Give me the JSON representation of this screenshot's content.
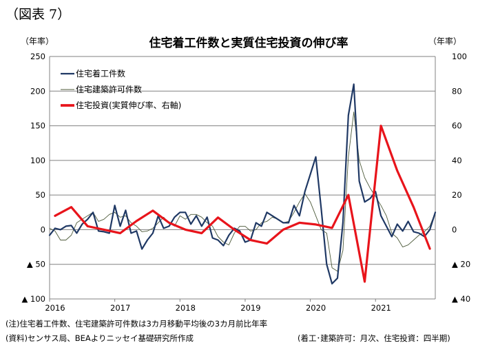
{
  "figure_label": "（図表 7）",
  "footer": {
    "note": "(注)住宅着工件数、住宅建築許可件数は3カ月移動平均後の3カ月前比年率",
    "source": "(資料)センサス局、BEAよりニッセイ基礎研究所作成",
    "frequency": "(着工･建築許可：月次、住宅投資：四半期)"
  },
  "colors": {
    "starts": "#1f3864",
    "permits": "#4d5a3a",
    "investment": "#e8141b",
    "grid": "#808080"
  },
  "chart_data": {
    "type": "line",
    "title": "住宅着工件数と実質住宅投資の伸び率",
    "y_left_unit": "（年率）",
    "y_right_unit": "（年率）",
    "y_left": {
      "min": -100,
      "max": 250,
      "ticks": [
        250,
        200,
        150,
        100,
        50,
        0,
        -50,
        -100
      ],
      "tick_labels": [
        "250",
        "200",
        "150",
        "100",
        "50",
        "0",
        "▲ 50",
        "▲ 100"
      ]
    },
    "y_right": {
      "min": -40,
      "max": 100,
      "ticks": [
        100,
        80,
        60,
        40,
        20,
        0,
        -20,
        -40
      ],
      "tick_labels": [
        "100",
        "80",
        "60",
        "40",
        "20",
        "0",
        "▲ 20",
        "▲ 40"
      ]
    },
    "x_labels": [
      "2016",
      "2017",
      "2018",
      "2019",
      "2020",
      "2021"
    ],
    "x_range_months": [
      0,
      71
    ],
    "grid": true,
    "legend_position": "top-left",
    "series": [
      {
        "name": "住宅着工件数",
        "axis": "left",
        "x_unit": "month_index",
        "values": [
          -8,
          2,
          0,
          5,
          6,
          -5,
          8,
          15,
          25,
          -2,
          -3,
          -5,
          35,
          5,
          28,
          -5,
          -2,
          -28,
          -15,
          -5,
          20,
          2,
          5,
          18,
          25,
          25,
          8,
          20,
          5,
          18,
          -12,
          -15,
          -23,
          -8,
          2,
          -2,
          -18,
          -15,
          10,
          5,
          25,
          20,
          15,
          10,
          10,
          35,
          20,
          55,
          80,
          105,
          30,
          -50,
          -78,
          -70,
          10,
          165,
          210,
          70,
          40,
          45,
          55,
          20,
          5,
          -10,
          8,
          -2,
          12,
          -3,
          -5,
          -10,
          0,
          25
        ]
      },
      {
        "name": "住宅建築許可件数",
        "axis": "left",
        "x_unit": "month_index",
        "values": [
          2,
          -2,
          -15,
          -15,
          -8,
          10,
          15,
          20,
          25,
          12,
          15,
          22,
          25,
          18,
          20,
          10,
          5,
          -3,
          -2,
          2,
          10,
          18,
          10,
          5,
          20,
          15,
          22,
          22,
          18,
          10,
          5,
          -10,
          -18,
          -22,
          -5,
          5,
          5,
          -2,
          0,
          10,
          12,
          18,
          15,
          10,
          12,
          25,
          40,
          52,
          40,
          20,
          0,
          -5,
          -55,
          -60,
          -30,
          105,
          170,
          100,
          75,
          60,
          48,
          35,
          20,
          -5,
          -12,
          -25,
          -22,
          -15,
          -8,
          -3,
          5,
          25
        ]
      },
      {
        "name": "住宅投資(実質伸び率、右軸)",
        "axis": "right",
        "x_unit": "quarter_mid_month_index",
        "x": [
          1,
          4,
          7,
          10,
          13,
          16,
          19,
          22,
          25,
          28,
          31,
          34,
          37,
          40,
          43,
          46,
          49,
          52,
          55,
          58,
          61,
          64,
          67,
          70
        ],
        "values": [
          8,
          13,
          2,
          0,
          -2,
          5,
          11,
          4,
          0,
          -2,
          7,
          0,
          -6,
          -8,
          0,
          4,
          3,
          1,
          20,
          -30,
          60,
          34,
          13,
          -11
        ]
      }
    ]
  },
  "legend": [
    {
      "label": "住宅着工件数"
    },
    {
      "label": "住宅建築許可件数"
    },
    {
      "label": "住宅投資(実質伸び率、右軸)"
    }
  ]
}
